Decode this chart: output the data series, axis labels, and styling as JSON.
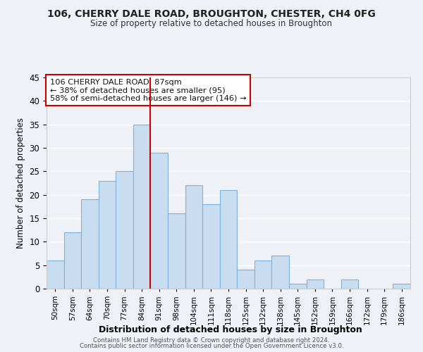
{
  "title": "106, CHERRY DALE ROAD, BROUGHTON, CHESTER, CH4 0FG",
  "subtitle": "Size of property relative to detached houses in Broughton",
  "xlabel": "Distribution of detached houses by size in Broughton",
  "ylabel": "Number of detached properties",
  "bar_labels": [
    "50sqm",
    "57sqm",
    "64sqm",
    "70sqm",
    "77sqm",
    "84sqm",
    "91sqm",
    "98sqm",
    "104sqm",
    "111sqm",
    "118sqm",
    "125sqm",
    "132sqm",
    "138sqm",
    "145sqm",
    "152sqm",
    "159sqm",
    "166sqm",
    "172sqm",
    "179sqm",
    "186sqm"
  ],
  "bar_values": [
    6,
    12,
    19,
    23,
    25,
    35,
    29,
    16,
    22,
    18,
    21,
    4,
    6,
    7,
    1,
    2,
    0,
    2,
    0,
    0,
    1
  ],
  "bar_color": "#c8ddf0",
  "bar_edge_color": "#7fb3d9",
  "reference_line_x": 5.5,
  "reference_line_color": "#cc0000",
  "ylim": [
    0,
    45
  ],
  "yticks": [
    0,
    5,
    10,
    15,
    20,
    25,
    30,
    35,
    40,
    45
  ],
  "annotation_title": "106 CHERRY DALE ROAD: 87sqm",
  "annotation_line1": "← 38% of detached houses are smaller (95)",
  "annotation_line2": "58% of semi-detached houses are larger (146) →",
  "annotation_box_color": "#ffffff",
  "annotation_box_edge": "#cc0000",
  "footer1": "Contains HM Land Registry data © Crown copyright and database right 2024.",
  "footer2": "Contains public sector information licensed under the Open Government Licence v3.0.",
  "background_color": "#eef2f7",
  "grid_color": "#ffffff"
}
